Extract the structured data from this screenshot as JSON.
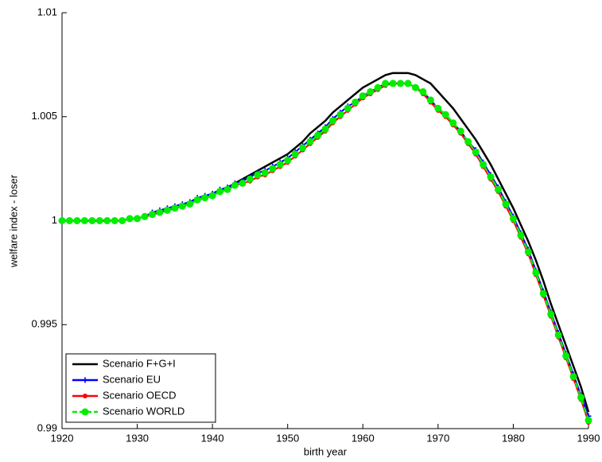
{
  "chart_data": {
    "type": "line",
    "xlabel": "birth year",
    "ylabel": "welfare index - loser",
    "x": [
      1920,
      1921,
      1922,
      1923,
      1924,
      1925,
      1926,
      1927,
      1928,
      1929,
      1930,
      1931,
      1932,
      1933,
      1934,
      1935,
      1936,
      1937,
      1938,
      1939,
      1940,
      1941,
      1942,
      1943,
      1944,
      1945,
      1946,
      1947,
      1948,
      1949,
      1950,
      1951,
      1952,
      1953,
      1954,
      1955,
      1956,
      1957,
      1958,
      1959,
      1960,
      1961,
      1962,
      1963,
      1964,
      1965,
      1966,
      1967,
      1968,
      1969,
      1970,
      1971,
      1972,
      1973,
      1974,
      1975,
      1976,
      1977,
      1978,
      1979,
      1980,
      1981,
      1982,
      1983,
      1984,
      1985,
      1986,
      1987,
      1988,
      1989,
      1990
    ],
    "xlim": [
      1920,
      1990
    ],
    "xticks": [
      1920,
      1930,
      1940,
      1950,
      1960,
      1970,
      1980,
      1990
    ],
    "ylim": [
      0.99,
      1.01
    ],
    "yticks": [
      0.99,
      0.995,
      1,
      1.005,
      1.01
    ],
    "legend": "lower left",
    "series": [
      {
        "name": "Scenario F+G+I",
        "color": "#000000",
        "marker": "none",
        "dash": "solid",
        "values": [
          1,
          1,
          1,
          1,
          1,
          1,
          1,
          1,
          1,
          1.0001,
          1.0001,
          1.0002,
          1.0003,
          1.0004,
          1.0005,
          1.0006,
          1.0007,
          1.0009,
          1.001,
          1.0011,
          1.0013,
          1.0014,
          1.0016,
          1.0018,
          1.002,
          1.0022,
          1.0024,
          1.0026,
          1.0028,
          1.003,
          1.0032,
          1.0035,
          1.0038,
          1.0042,
          1.0045,
          1.0048,
          1.0052,
          1.0055,
          1.0058,
          1.0061,
          1.0064,
          1.0066,
          1.0068,
          1.007,
          1.0071,
          1.0071,
          1.0071,
          1.007,
          1.0068,
          1.0066,
          1.0062,
          1.0058,
          1.0054,
          1.0049,
          1.0044,
          1.0039,
          1.0033,
          1.0027,
          1.002,
          1.0013,
          1.0006,
          0.9998,
          0.999,
          0.9981,
          0.9971,
          0.996,
          0.995,
          0.994,
          0.993,
          0.992,
          0.9908
        ]
      },
      {
        "name": "Scenario EU",
        "color": "#0000ff",
        "marker": "plus",
        "dash": "solid",
        "values": [
          1,
          1,
          1,
          1,
          1,
          1,
          1,
          1,
          1,
          1.0001,
          1.0001,
          1.0002,
          1.0004,
          1.0005,
          1.0006,
          1.0007,
          1.0008,
          1.0009,
          1.0011,
          1.0012,
          1.0013,
          1.0015,
          1.0016,
          1.0018,
          1.0019,
          1.0021,
          1.0023,
          1.0024,
          1.0026,
          1.0028,
          1.003,
          1.0033,
          1.0036,
          1.0039,
          1.0042,
          1.0045,
          1.0049,
          1.0052,
          1.0055,
          1.0057,
          1.006,
          1.0062,
          1.0064,
          1.0066,
          1.0066,
          1.0066,
          1.0066,
          1.0064,
          1.0062,
          1.0058,
          1.0054,
          1.0051,
          1.0047,
          1.0043,
          1.0038,
          1.0034,
          1.0028,
          1.0022,
          1.0016,
          1.0009,
          1.0002,
          0.9994,
          0.9986,
          0.9976,
          0.9966,
          0.9956,
          0.9946,
          0.9936,
          0.9926,
          0.9916,
          0.9906
        ]
      },
      {
        "name": "Scenario OECD",
        "color": "#ff0000",
        "marker": "circle",
        "dash": "solid",
        "values": [
          1,
          1,
          1,
          1,
          1,
          1,
          1,
          1,
          1,
          1.0001,
          1.0001,
          1.0002,
          1.0003,
          1.0004,
          1.0005,
          1.0006,
          1.0007,
          1.0008,
          1.001,
          1.0011,
          1.0012,
          1.0014,
          1.0015,
          1.0017,
          1.0018,
          1.0019,
          1.0021,
          1.0022,
          1.0024,
          1.0026,
          1.0028,
          1.0031,
          1.0034,
          1.0037,
          1.004,
          1.0043,
          1.0047,
          1.005,
          1.0053,
          1.0056,
          1.0059,
          1.0061,
          1.0063,
          1.0065,
          1.0066,
          1.0066,
          1.0066,
          1.0064,
          1.0061,
          1.0057,
          1.0053,
          1.005,
          1.0046,
          1.0042,
          1.0037,
          1.0032,
          1.0026,
          1.002,
          1.0014,
          1.0007,
          1.0,
          0.9992,
          0.9984,
          0.9974,
          0.9964,
          0.9954,
          0.9944,
          0.9934,
          0.9924,
          0.9914,
          0.9903
        ]
      },
      {
        "name": "Scenario WORLD",
        "color": "#00ee00",
        "marker": "bigcircle",
        "dash": "dashed",
        "values": [
          1,
          1,
          1,
          1,
          1,
          1,
          1,
          1,
          1,
          1.0001,
          1.0001,
          1.0002,
          1.0003,
          1.0004,
          1.0005,
          1.0006,
          1.0007,
          1.0008,
          1.001,
          1.0011,
          1.0012,
          1.0014,
          1.0015,
          1.0017,
          1.0018,
          1.002,
          1.0022,
          1.0023,
          1.0025,
          1.0027,
          1.0029,
          1.0032,
          1.0035,
          1.0038,
          1.0041,
          1.0044,
          1.0048,
          1.0051,
          1.0054,
          1.0057,
          1.006,
          1.0062,
          1.0064,
          1.0066,
          1.0066,
          1.0066,
          1.0066,
          1.0064,
          1.0062,
          1.0058,
          1.0054,
          1.0051,
          1.0047,
          1.0043,
          1.0038,
          1.0033,
          1.0027,
          1.0021,
          1.0015,
          1.0008,
          1.0001,
          0.9993,
          0.9985,
          0.9975,
          0.9965,
          0.9955,
          0.9945,
          0.9935,
          0.9925,
          0.9915,
          0.9904
        ]
      }
    ]
  }
}
